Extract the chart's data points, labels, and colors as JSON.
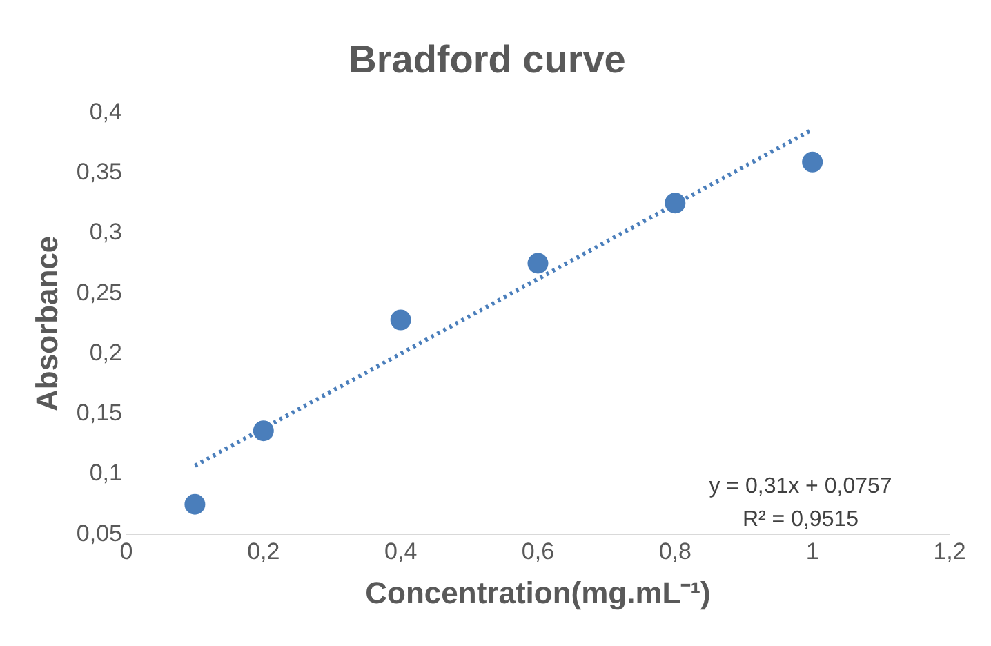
{
  "chart_data": {
    "type": "scatter",
    "title": "Bradford curve",
    "xlabel": "Concentration(mg.mL⁻¹)",
    "ylabel": "Absorbance",
    "x": [
      0.1,
      0.2,
      0.4,
      0.6,
      0.8,
      1
    ],
    "series": [
      {
        "color": "#4a7ebb",
        "values": [
          0.075,
          0.136,
          0.228,
          0.275,
          0.325,
          0.359
        ],
        "marker": "circle"
      },
      {
        "type": "line",
        "color": "#4a7ebb",
        "line_style": "dotted",
        "marker": "none",
        "x": [
          0.1,
          1
        ],
        "values": [
          0.107,
          0.386
        ]
      }
    ],
    "xlim": [
      0,
      1.2
    ],
    "xticks": [
      0,
      {
        "value": 0.2,
        "label": "0,2"
      },
      {
        "value": 0.4,
        "label": "0,4"
      },
      {
        "value": 0.6,
        "label": "0,6"
      },
      {
        "value": 0.8,
        "label": "0,8"
      },
      1,
      {
        "value": 1.2,
        "label": "1,2"
      }
    ],
    "ylim": [
      0.05,
      0.4
    ],
    "yticks": [
      {
        "value": 0.05,
        "label": "0,05"
      },
      {
        "value": 0.1,
        "label": "0,1"
      },
      {
        "value": 0.15,
        "label": "0,15"
      },
      {
        "value": 0.2,
        "label": "0,2"
      },
      {
        "value": 0.25,
        "label": "0,25"
      },
      {
        "value": 0.3,
        "label": "0,3"
      },
      {
        "value": 0.35,
        "label": "0,35"
      },
      {
        "value": 0.4,
        "label": "0,4"
      }
    ],
    "annotations": [
      "y = 0,31x + 0,0757",
      "R² = 0,9515"
    ],
    "grid": false,
    "legend": false
  }
}
